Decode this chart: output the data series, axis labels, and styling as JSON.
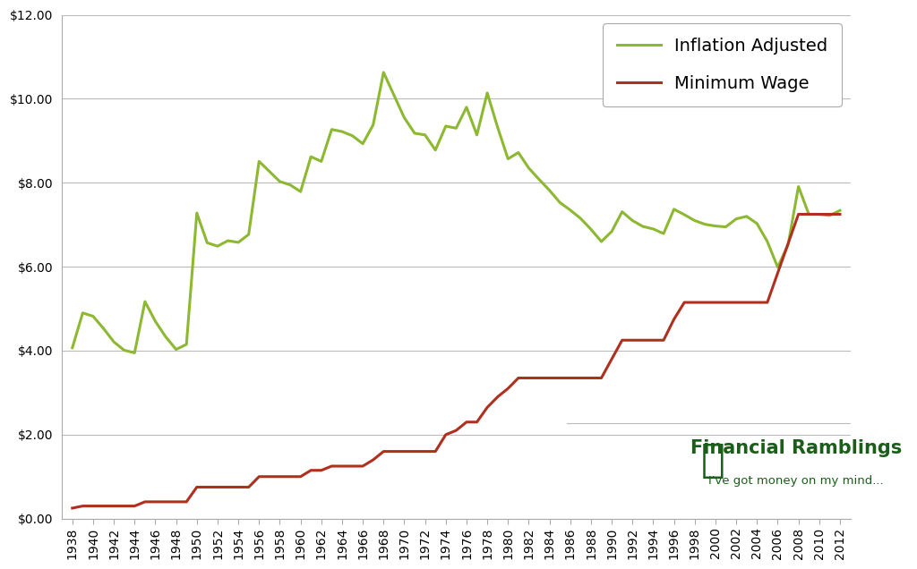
{
  "bg_color": "#ffffff",
  "plot_bg_color": "#ffffff",
  "grid_color": "#bbbbbb",
  "inflation_color": "#8db832",
  "minwage_color": "#b03020",
  "inflation_label": "Inflation Adjusted",
  "minwage_label": "Minimum Wage",
  "years": [
    1938,
    1939,
    1940,
    1941,
    1942,
    1943,
    1944,
    1945,
    1946,
    1947,
    1948,
    1949,
    1950,
    1951,
    1952,
    1953,
    1954,
    1955,
    1956,
    1957,
    1958,
    1959,
    1960,
    1961,
    1962,
    1963,
    1964,
    1965,
    1966,
    1967,
    1968,
    1969,
    1970,
    1971,
    1972,
    1973,
    1974,
    1975,
    1976,
    1977,
    1978,
    1979,
    1980,
    1981,
    1982,
    1983,
    1984,
    1985,
    1986,
    1987,
    1988,
    1989,
    1990,
    1991,
    1992,
    1993,
    1994,
    1995,
    1996,
    1997,
    1998,
    1999,
    2000,
    2001,
    2002,
    2003,
    2004,
    2005,
    2006,
    2007,
    2008,
    2009,
    2010,
    2011,
    2012
  ],
  "min_wage": [
    0.25,
    0.3,
    0.3,
    0.3,
    0.3,
    0.3,
    0.3,
    0.4,
    0.4,
    0.4,
    0.4,
    0.4,
    0.75,
    0.75,
    0.75,
    0.75,
    0.75,
    0.75,
    1.0,
    1.0,
    1.0,
    1.0,
    1.0,
    1.15,
    1.15,
    1.25,
    1.25,
    1.25,
    1.25,
    1.4,
    1.6,
    1.6,
    1.6,
    1.6,
    1.6,
    1.6,
    2.0,
    2.1,
    2.3,
    2.3,
    2.65,
    2.9,
    3.1,
    3.35,
    3.35,
    3.35,
    3.35,
    3.35,
    3.35,
    3.35,
    3.35,
    3.35,
    3.8,
    4.25,
    4.25,
    4.25,
    4.25,
    4.25,
    4.75,
    5.15,
    5.15,
    5.15,
    5.15,
    5.15,
    5.15,
    5.15,
    5.15,
    5.15,
    5.85,
    6.55,
    7.25,
    7.25,
    7.25,
    7.25,
    7.25
  ],
  "inflation_adj": [
    4.07,
    4.9,
    4.82,
    4.53,
    4.21,
    4.01,
    3.95,
    5.17,
    4.7,
    4.33,
    4.03,
    4.15,
    7.28,
    6.57,
    6.49,
    6.62,
    6.58,
    6.77,
    8.51,
    8.27,
    8.03,
    7.95,
    7.79,
    8.62,
    8.51,
    9.27,
    9.22,
    9.12,
    8.93,
    9.38,
    10.63,
    10.09,
    9.55,
    9.18,
    9.14,
    8.78,
    9.35,
    9.3,
    9.8,
    9.14,
    10.14,
    9.32,
    8.57,
    8.72,
    8.35,
    8.08,
    7.82,
    7.53,
    7.35,
    7.15,
    6.89,
    6.6,
    6.84,
    7.31,
    7.1,
    6.96,
    6.9,
    6.79,
    7.37,
    7.24,
    7.1,
    7.01,
    6.97,
    6.95,
    7.14,
    7.2,
    7.03,
    6.6,
    5.99,
    6.52,
    7.91,
    7.25,
    7.25,
    7.22,
    7.34
  ],
  "ylim": [
    0,
    12
  ],
  "yticks": [
    0,
    2,
    4,
    6,
    8,
    10,
    12
  ],
  "xlim": [
    1937,
    2013
  ],
  "line_width": 2.2,
  "legend_fontsize": 14,
  "tick_fontsize": 10,
  "watermark_text": "Financial Ramblings",
  "watermark_sub": "I've got money on my mind...",
  "watermark_color": "#1a5e1a",
  "legend_border_color": "#aaaaaa",
  "spine_color": "#aaaaaa"
}
